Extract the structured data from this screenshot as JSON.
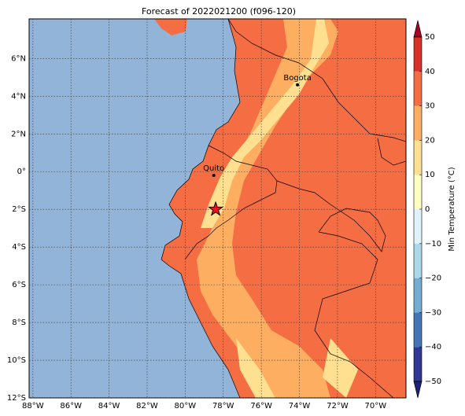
{
  "map": {
    "title": "Forecast of 2022021200 (f096-120)",
    "lonlim": [
      -88.2,
      -68.4
    ],
    "latlim": [
      -12,
      8.1
    ],
    "xticks": [
      {
        "value": -88,
        "label": "88°W"
      },
      {
        "value": -86,
        "label": "86°W"
      },
      {
        "value": -84,
        "label": "84°W"
      },
      {
        "value": -82,
        "label": "82°W"
      },
      {
        "value": -80,
        "label": "80°W"
      },
      {
        "value": -78,
        "label": "78°W"
      },
      {
        "value": -76,
        "label": "76°W"
      },
      {
        "value": -74,
        "label": "74°W"
      },
      {
        "value": -72,
        "label": "72°W"
      },
      {
        "value": -70,
        "label": "70°W"
      }
    ],
    "yticks": [
      {
        "value": -12,
        "label": "12°S"
      },
      {
        "value": -10,
        "label": "10°S"
      },
      {
        "value": -8,
        "label": "8°S"
      },
      {
        "value": -6,
        "label": "6°S"
      },
      {
        "value": -4,
        "label": "4°S"
      },
      {
        "value": -2,
        "label": "2°S"
      },
      {
        "value": 0,
        "label": "0°"
      },
      {
        "value": 2,
        "label": "2°N"
      },
      {
        "value": 4,
        "label": "4°N"
      },
      {
        "value": 6,
        "label": "6°N"
      }
    ],
    "cities": [
      {
        "name": "Bogota",
        "lon": -74.1,
        "lat": 4.6
      },
      {
        "name": "Quito",
        "lon": -78.5,
        "lat": -0.2
      }
    ],
    "marker": {
      "lon": -78.4,
      "lat": -2.0
    },
    "colorbar": {
      "label": "Min Temperature (°C)",
      "ticks": [
        {
          "value": -50,
          "label": "−50"
        },
        {
          "value": -40,
          "label": "−40"
        },
        {
          "value": -30,
          "label": "−30"
        },
        {
          "value": -20,
          "label": "−20"
        },
        {
          "value": -10,
          "label": "−10"
        },
        0,
        10,
        20,
        30,
        40,
        50
      ],
      "colors": [
        "#313695",
        "#4575b4",
        "#74add1",
        "#abd9e9",
        "#e0f3f8",
        "#ffffbf",
        "#fee090",
        "#fdae61",
        "#f46d43",
        "#d73027"
      ],
      "under": "#1f2070",
      "over": "#a50026"
    }
  }
}
